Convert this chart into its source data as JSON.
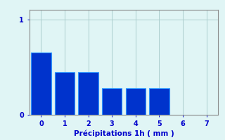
{
  "categories": [
    0,
    1,
    2,
    3,
    4,
    5
  ],
  "values": [
    0.65,
    0.45,
    0.45,
    0.28,
    0.28,
    0.28
  ],
  "bar_color": "#0033cc",
  "bar_edge_color": "#3399ff",
  "background_color": "#e0f5f5",
  "xlabel": "Précipitations 1h ( mm )",
  "xlim": [
    -0.5,
    7.5
  ],
  "ylim": [
    0,
    1.1
  ],
  "yticks": [
    0,
    1
  ],
  "xticks": [
    0,
    1,
    2,
    3,
    4,
    5,
    6,
    7
  ],
  "grid_color": "#aacccc",
  "xlabel_color": "#0000cc",
  "tick_color": "#0000cc",
  "xlabel_fontsize": 7.5,
  "tick_fontsize": 7
}
